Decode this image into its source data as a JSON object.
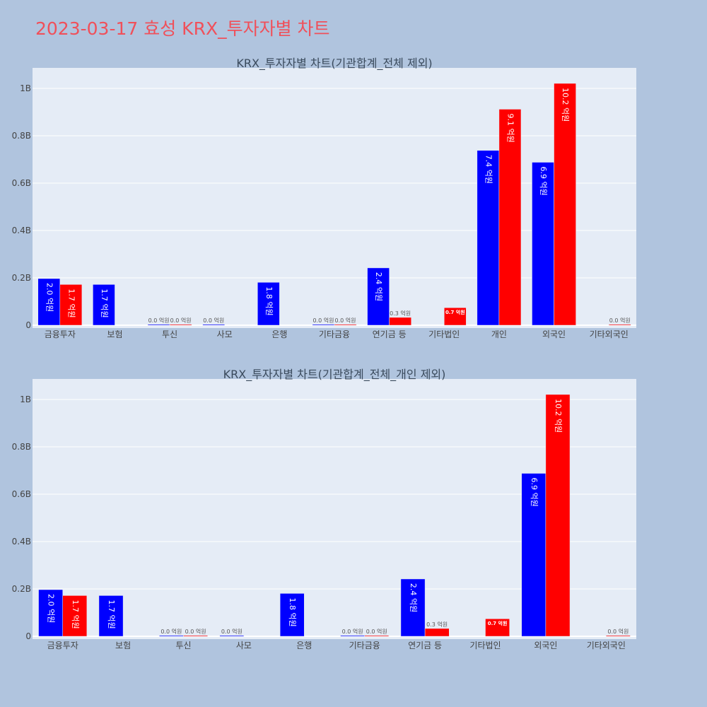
{
  "page_title": "2023-03-17 효성 KRX_투자자별 차트",
  "colors": {
    "series_a": "#0000ff",
    "series_b": "#ff0000",
    "plot_bg": "#e5ecf6",
    "page_bg": "#b0c4de",
    "title": "#f0505a"
  },
  "chart_data": [
    {
      "type": "bar",
      "title": "KRX_투자자별 차트(기관합계_전체 제외)",
      "categories": [
        "금융투자",
        "보험",
        "투신",
        "사모",
        "은행",
        "기타금융",
        "연기금 등",
        "기타법인",
        "개인",
        "외국인",
        "기타외국인"
      ],
      "series": [
        {
          "values": [
            0.197,
            0.172,
            0.0,
            0.0,
            0.181,
            0.0,
            0.242,
            null,
            0.738,
            0.688,
            null
          ],
          "labels": [
            "2.0 억원",
            "1.7 억원",
            "0.0 억원",
            "0.0 억원",
            "1.8 억원",
            "0.0 억원",
            "2.4 억원",
            "",
            "7.4 억원",
            "6.9 억원",
            ""
          ]
        },
        {
          "values": [
            0.172,
            null,
            0.0,
            null,
            null,
            0.0,
            0.033,
            0.074,
            0.912,
            1.021,
            0.0
          ],
          "labels": [
            "1.7 억원",
            "",
            "0.0 억원",
            "",
            "",
            "0.0 억원",
            "0.3 억원",
            "0.7 억원",
            "9.1 억원",
            "10.2 억원",
            "0.0 억원"
          ]
        }
      ],
      "ylim": [
        0,
        1.08
      ],
      "yticks": [
        0,
        0.2,
        0.4,
        0.6,
        0.8,
        1.0
      ],
      "ytick_labels": [
        "0",
        "0.2B",
        "0.4B",
        "0.6B",
        "0.8B",
        "1B"
      ],
      "grid": true
    },
    {
      "type": "bar",
      "title": "KRX_투자자별 차트(기관합계_전체_개인 제외)",
      "categories": [
        "금융투자",
        "보험",
        "투신",
        "사모",
        "은행",
        "기타금융",
        "연기금 등",
        "기타법인",
        "외국인",
        "기타외국인"
      ],
      "series": [
        {
          "values": [
            0.197,
            0.172,
            0.0,
            0.0,
            0.181,
            0.0,
            0.242,
            null,
            0.688,
            null
          ],
          "labels": [
            "2.0 억원",
            "1.7 억원",
            "0.0 억원",
            "0.0 억원",
            "1.8 억원",
            "0.0 억원",
            "2.4 억원",
            "",
            "6.9 억원",
            ""
          ]
        },
        {
          "values": [
            0.172,
            null,
            0.0,
            null,
            null,
            0.0,
            0.033,
            0.074,
            1.021,
            0.0
          ],
          "labels": [
            "1.7 억원",
            "",
            "0.0 억원",
            "",
            "",
            "0.0 억원",
            "0.3 억원",
            "0.7 억원",
            "10.2 억원",
            "0.0 억원"
          ]
        }
      ],
      "ylim": [
        0,
        1.08
      ],
      "yticks": [
        0,
        0.2,
        0.4,
        0.6,
        0.8,
        1.0
      ],
      "ytick_labels": [
        "0",
        "0.2B",
        "0.4B",
        "0.6B",
        "0.8B",
        "1B"
      ],
      "grid": true
    }
  ]
}
